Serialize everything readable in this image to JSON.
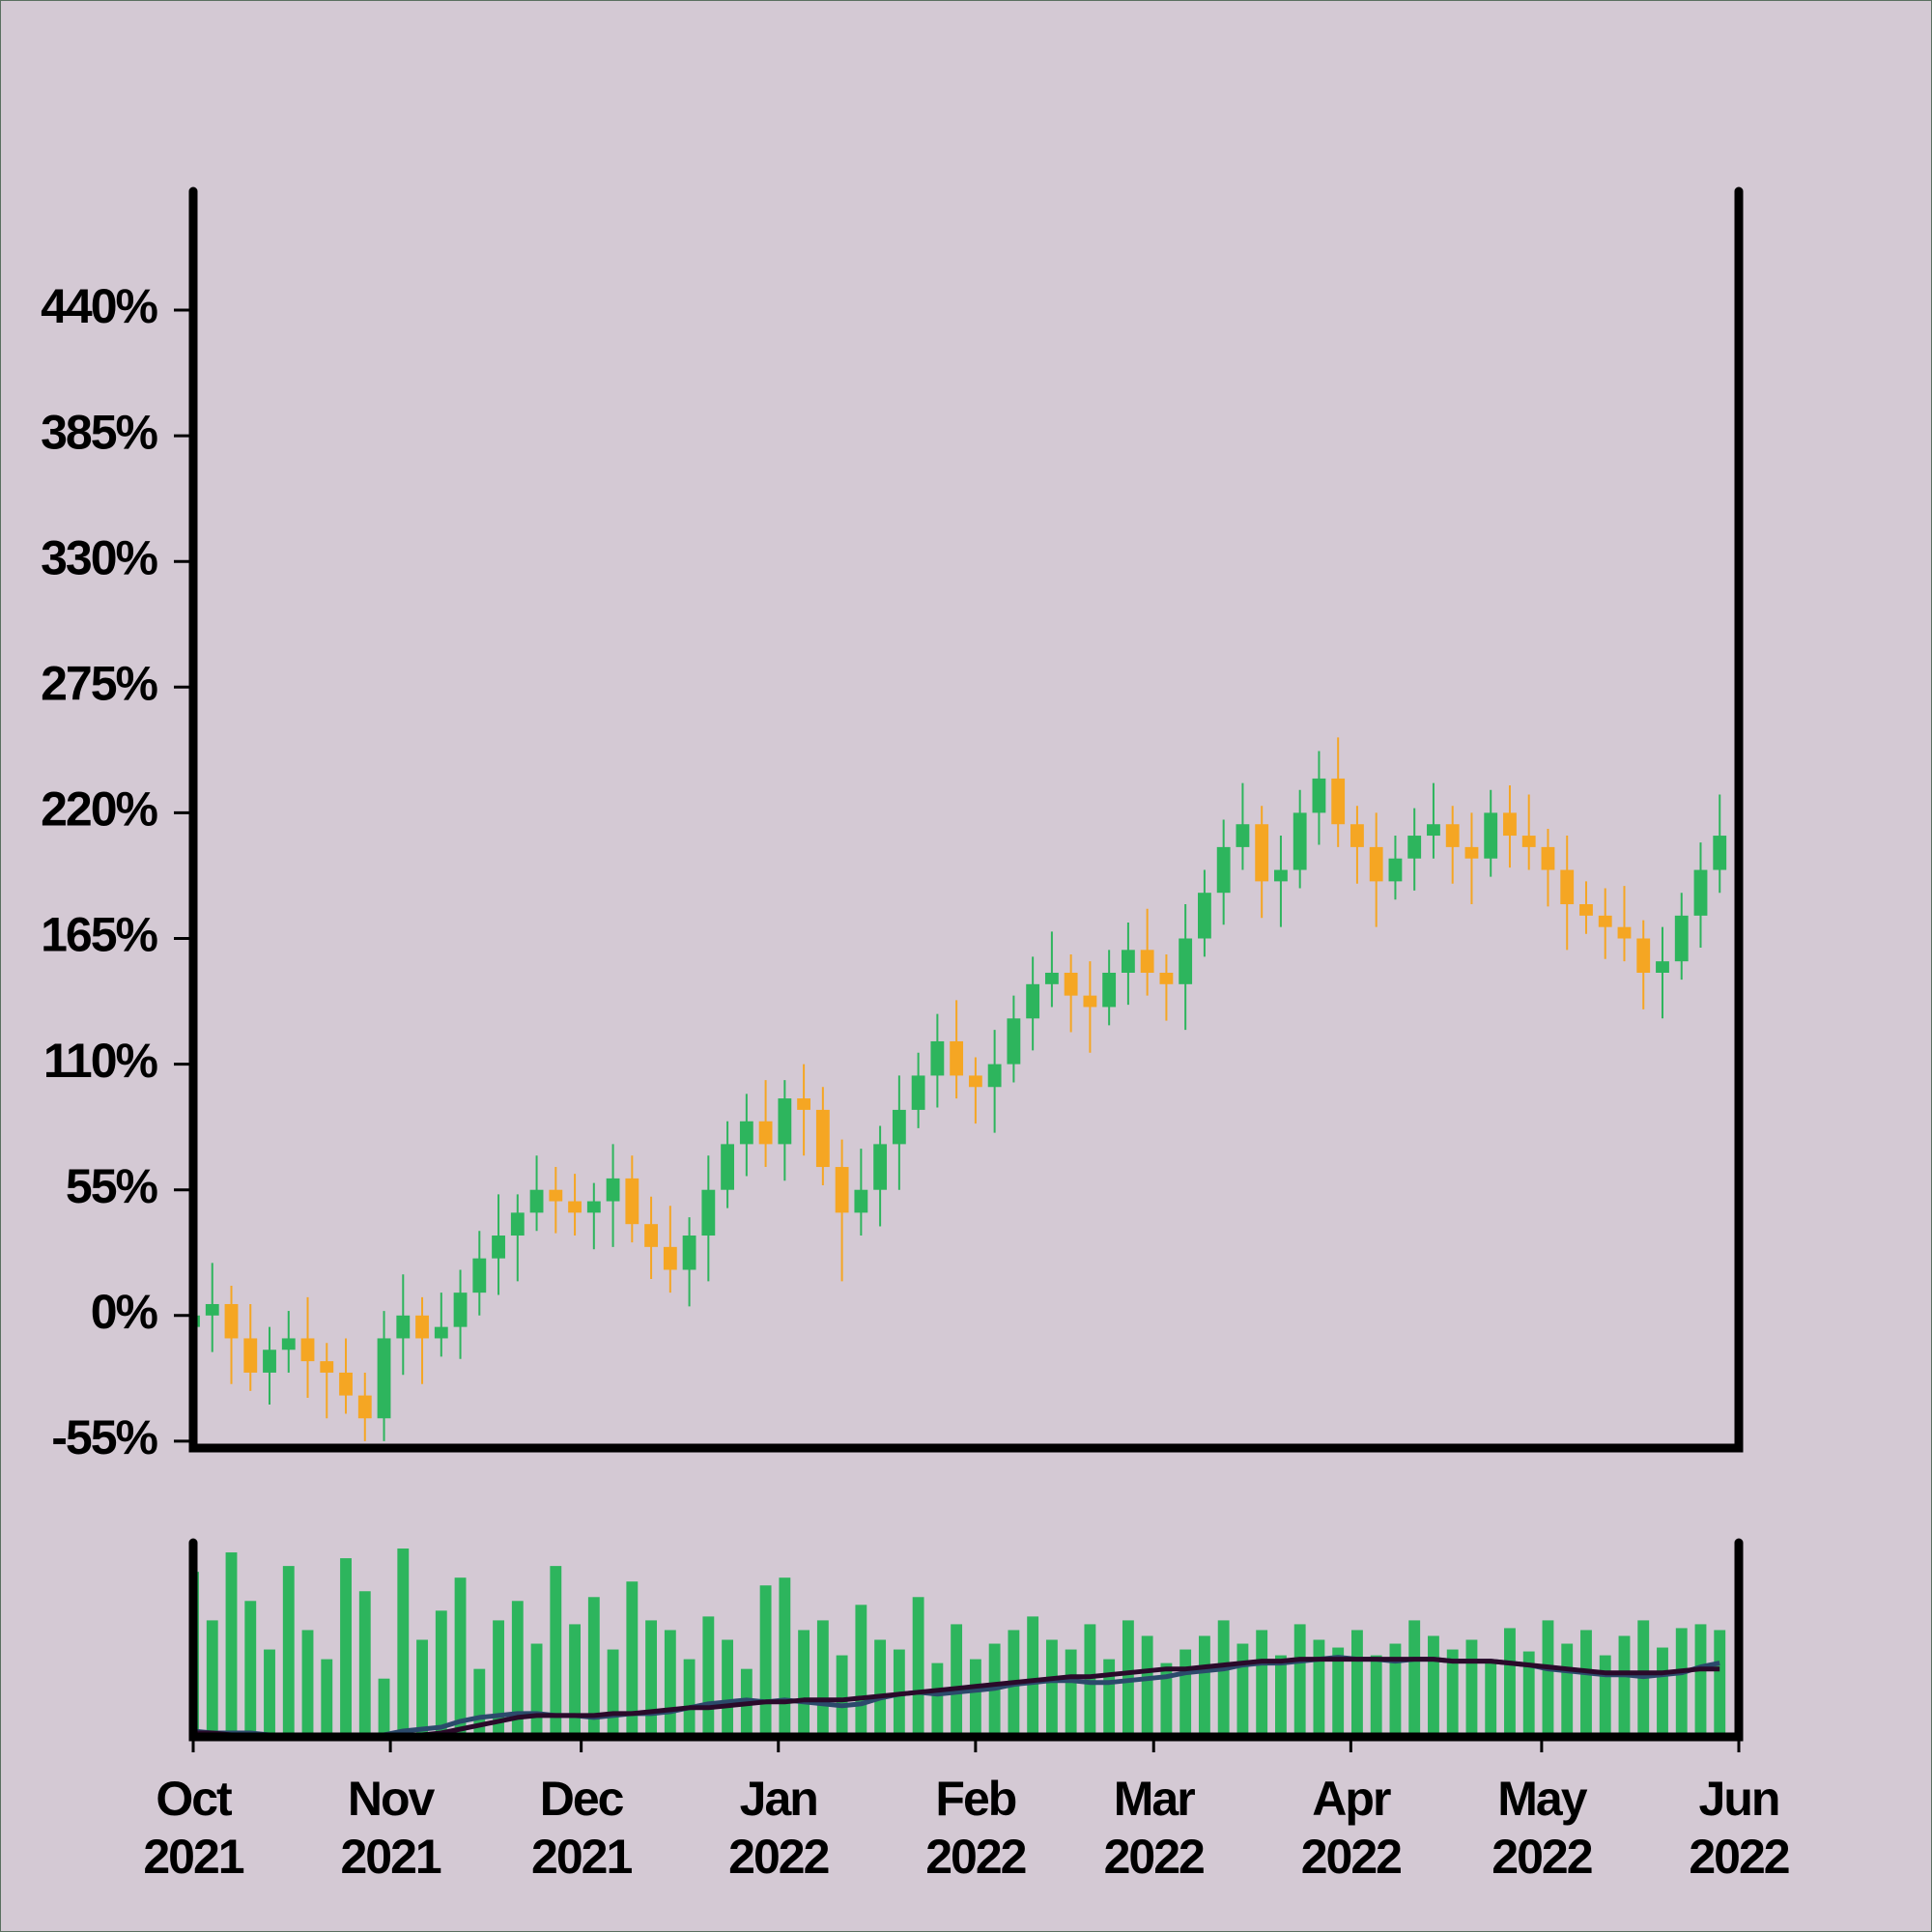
{
  "chart_data": [
    {
      "type": "candlestick",
      "x": [
        "2021-10-01",
        "2021-10-04",
        "2021-10-07",
        "2021-10-10",
        "2021-10-13",
        "2021-10-16",
        "2021-10-19",
        "2021-10-22",
        "2021-10-25",
        "2021-10-28",
        "2021-10-31",
        "2021-11-03",
        "2021-11-06",
        "2021-11-09",
        "2021-11-12",
        "2021-11-15",
        "2021-11-18",
        "2021-11-21",
        "2021-11-24",
        "2021-11-27",
        "2021-11-30",
        "2021-12-03",
        "2021-12-06",
        "2021-12-09",
        "2021-12-12",
        "2021-12-15",
        "2021-12-18",
        "2021-12-21",
        "2021-12-24",
        "2021-12-27",
        "2021-12-30",
        "2022-01-02",
        "2022-01-05",
        "2022-01-08",
        "2022-01-11",
        "2022-01-14",
        "2022-01-17",
        "2022-01-20",
        "2022-01-23",
        "2022-01-26",
        "2022-01-29",
        "2022-02-01",
        "2022-02-04",
        "2022-02-07",
        "2022-02-10",
        "2022-02-13",
        "2022-02-16",
        "2022-02-19",
        "2022-02-22",
        "2022-02-25",
        "2022-02-28",
        "2022-03-03",
        "2022-03-06",
        "2022-03-09",
        "2022-03-12",
        "2022-03-15",
        "2022-03-18",
        "2022-03-21",
        "2022-03-24",
        "2022-03-27",
        "2022-03-30",
        "2022-04-02",
        "2022-04-05",
        "2022-04-08",
        "2022-04-11",
        "2022-04-14",
        "2022-04-17",
        "2022-04-20",
        "2022-04-23",
        "2022-04-26",
        "2022-04-29",
        "2022-05-02",
        "2022-05-05",
        "2022-05-08",
        "2022-05-11",
        "2022-05-14",
        "2022-05-17",
        "2022-05-20",
        "2022-05-23",
        "2022-05-26",
        "2022-05-29"
      ],
      "open": [
        -5,
        0,
        5,
        -10,
        -25,
        -15,
        -10,
        -20,
        -25,
        -35,
        -45,
        -10,
        0,
        -10,
        -5,
        10,
        25,
        35,
        45,
        55,
        50,
        45,
        50,
        60,
        40,
        30,
        20,
        35,
        55,
        75,
        85,
        75,
        95,
        90,
        65,
        45,
        55,
        75,
        90,
        105,
        120,
        105,
        100,
        110,
        130,
        145,
        150,
        140,
        135,
        150,
        160,
        150,
        145,
        165,
        185,
        205,
        215,
        190,
        195,
        220,
        235,
        215,
        205,
        190,
        200,
        210,
        215,
        205,
        200,
        220,
        210,
        205,
        195,
        180,
        175,
        170,
        165,
        150,
        155,
        175,
        195
      ],
      "high": [
        12,
        23,
        13,
        5,
        -5,
        2,
        8,
        -12,
        -10,
        -25,
        2,
        18,
        8,
        10,
        20,
        37,
        53,
        53,
        70,
        65,
        62,
        58,
        75,
        70,
        52,
        48,
        43,
        70,
        85,
        97,
        103,
        103,
        110,
        100,
        77,
        73,
        83,
        105,
        115,
        132,
        138,
        113,
        125,
        140,
        157,
        168,
        158,
        155,
        160,
        172,
        178,
        158,
        180,
        195,
        217,
        233,
        223,
        210,
        230,
        247,
        253,
        223,
        220,
        210,
        222,
        233,
        223,
        220,
        230,
        232,
        228,
        213,
        210,
        190,
        187,
        188,
        173,
        170,
        185,
        207,
        228
      ],
      "low": [
        -15,
        -16,
        -30,
        -33,
        -39,
        -25,
        -36,
        -45,
        -43,
        -55,
        -55,
        -26,
        -30,
        -18,
        -19,
        0,
        9,
        15,
        37,
        36,
        35,
        29,
        30,
        32,
        16,
        10,
        4,
        15,
        47,
        61,
        65,
        59,
        70,
        57,
        15,
        35,
        39,
        55,
        82,
        91,
        95,
        84,
        80,
        102,
        116,
        135,
        124,
        115,
        127,
        136,
        140,
        129,
        125,
        157,
        171,
        195,
        174,
        170,
        187,
        206,
        205,
        189,
        170,
        182,
        186,
        200,
        189,
        180,
        192,
        196,
        195,
        179,
        160,
        167,
        156,
        155,
        134,
        130,
        147,
        161,
        185
      ],
      "close": [
        0,
        5,
        -10,
        -25,
        -15,
        -10,
        -20,
        -25,
        -35,
        -45,
        -10,
        0,
        -10,
        -5,
        10,
        25,
        35,
        45,
        55,
        50,
        45,
        50,
        60,
        40,
        30,
        20,
        35,
        55,
        75,
        85,
        75,
        95,
        90,
        65,
        45,
        55,
        75,
        90,
        105,
        120,
        105,
        100,
        110,
        130,
        145,
        150,
        140,
        135,
        150,
        160,
        150,
        145,
        165,
        185,
        205,
        215,
        190,
        195,
        220,
        235,
        215,
        205,
        190,
        200,
        210,
        215,
        205,
        200,
        220,
        210,
        205,
        195,
        180,
        175,
        170,
        165,
        150,
        155,
        175,
        195,
        210
      ],
      "up_color": "#2db55d",
      "down_color": "#f5a623",
      "xlim": [
        "2021-10-01",
        "2022-06-01"
      ],
      "ylim": [
        -58,
        492
      ],
      "yticks": [
        {
          "value": -55,
          "label": "-55%"
        },
        {
          "value": 0,
          "label": "0%"
        },
        {
          "value": 55,
          "label": "55%"
        },
        {
          "value": 110,
          "label": "110%"
        },
        {
          "value": 165,
          "label": "165%"
        },
        {
          "value": 220,
          "label": "220%"
        },
        {
          "value": 275,
          "label": "275%"
        },
        {
          "value": 330,
          "label": "330%"
        },
        {
          "value": 385,
          "label": "385%"
        },
        {
          "value": 440,
          "label": "440%"
        }
      ]
    },
    {
      "type": "bar",
      "values": [
        85,
        60,
        95,
        70,
        45,
        88,
        55,
        40,
        92,
        75,
        30,
        97,
        50,
        65,
        82,
        35,
        60,
        70,
        48,
        88,
        58,
        72,
        45,
        80,
        60,
        55,
        40,
        62,
        50,
        35,
        78,
        82,
        55,
        60,
        42,
        68,
        50,
        45,
        72,
        38,
        58,
        40,
        48,
        55,
        62,
        50,
        45,
        58,
        40,
        60,
        52,
        38,
        45,
        52,
        60,
        48,
        55,
        42,
        58,
        50,
        46,
        55,
        42,
        48,
        60,
        52,
        45,
        50,
        38,
        56,
        44,
        60,
        48,
        55,
        42,
        52,
        60,
        46,
        56,
        58,
        55
      ],
      "color": "#2db55d",
      "series": [
        {
          "color": "#2b4a6b",
          "values": [
            3,
            2,
            2,
            2,
            1,
            1,
            1,
            1,
            0,
            0,
            1,
            3,
            4,
            5,
            8,
            10,
            11,
            12,
            12,
            11,
            11,
            10,
            11,
            12,
            12,
            13,
            15,
            17,
            18,
            19,
            18,
            19,
            18,
            17,
            16,
            17,
            20,
            22,
            23,
            22,
            23,
            24,
            25,
            27,
            28,
            29,
            29,
            28,
            28,
            29,
            30,
            31,
            33,
            34,
            35,
            37,
            38,
            38,
            39,
            40,
            41,
            40,
            40,
            39,
            40,
            40,
            39,
            39,
            39,
            38,
            37,
            35,
            34,
            33,
            32,
            32,
            31,
            32,
            33,
            36,
            38
          ]
        },
        {
          "color": "#2a0a2a",
          "values": [
            2,
            2,
            1,
            1,
            1,
            1,
            0,
            0,
            0,
            0,
            0,
            0,
            1,
            2,
            4,
            6,
            8,
            10,
            11,
            11,
            11,
            11,
            12,
            12,
            13,
            14,
            15,
            15,
            16,
            17,
            18,
            18,
            19,
            19,
            19,
            20,
            21,
            22,
            23,
            24,
            25,
            26,
            27,
            28,
            29,
            30,
            31,
            31,
            32,
            33,
            34,
            35,
            35,
            36,
            37,
            38,
            39,
            39,
            40,
            40,
            40,
            40,
            40,
            40,
            40,
            40,
            39,
            39,
            39,
            38,
            37,
            36,
            35,
            34,
            33,
            33,
            33,
            33,
            34,
            35,
            35
          ]
        }
      ],
      "xlim": [
        "2021-10-01",
        "2022-06-01"
      ],
      "ylim": [
        0,
        100
      ],
      "xticks": [
        {
          "value": "2021-10-01",
          "label": "Oct",
          "sublabel": "2021"
        },
        {
          "value": "2021-11-01",
          "label": "Nov",
          "sublabel": "2021"
        },
        {
          "value": "2021-12-01",
          "label": "Dec",
          "sublabel": "2021"
        },
        {
          "value": "2022-01-01",
          "label": "Jan",
          "sublabel": "2022"
        },
        {
          "value": "2022-02-01",
          "label": "Feb",
          "sublabel": "2022"
        },
        {
          "value": "2022-03-01",
          "label": "Mar",
          "sublabel": "2022"
        },
        {
          "value": "2022-04-01",
          "label": "Apr",
          "sublabel": "2022"
        },
        {
          "value": "2022-05-01",
          "label": "May",
          "sublabel": "2022"
        },
        {
          "value": "2022-06-01",
          "label": "Jun",
          "sublabel": "2022"
        }
      ]
    }
  ]
}
